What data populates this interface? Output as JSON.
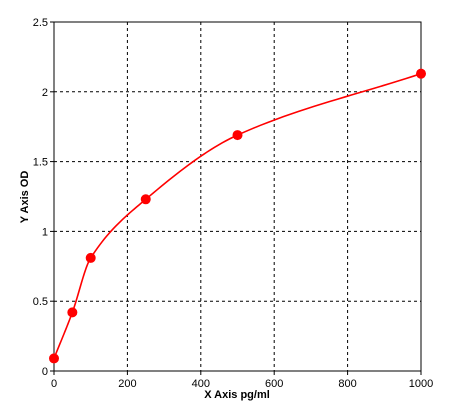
{
  "chart_data": {
    "type": "scatter",
    "title": "",
    "xlabel": "X Axis pg/ml",
    "ylabel": "Y Axis OD",
    "xlim": [
      0,
      1000
    ],
    "ylim": [
      0,
      2.5
    ],
    "x_ticks": [
      0,
      200,
      400,
      600,
      800,
      1000
    ],
    "y_ticks": [
      0,
      0.5,
      1,
      1.5,
      2,
      2.5
    ],
    "x_tick_labels": [
      "0",
      "200",
      "400",
      "600",
      "800",
      "1000"
    ],
    "y_tick_labels": [
      "0",
      "0.5",
      "1",
      "1.5",
      "2",
      "2.5"
    ],
    "grid": true,
    "legend": "none",
    "series": [
      {
        "points": [
          {
            "x": 0,
            "y": 0.09
          },
          {
            "x": 50,
            "y": 0.42
          },
          {
            "x": 100,
            "y": 0.81
          },
          {
            "x": 250,
            "y": 1.23
          },
          {
            "x": 500,
            "y": 1.69
          },
          {
            "x": 1000,
            "y": 2.13
          }
        ],
        "color": "#ff0000",
        "fit_curve": "saturation"
      }
    ]
  }
}
